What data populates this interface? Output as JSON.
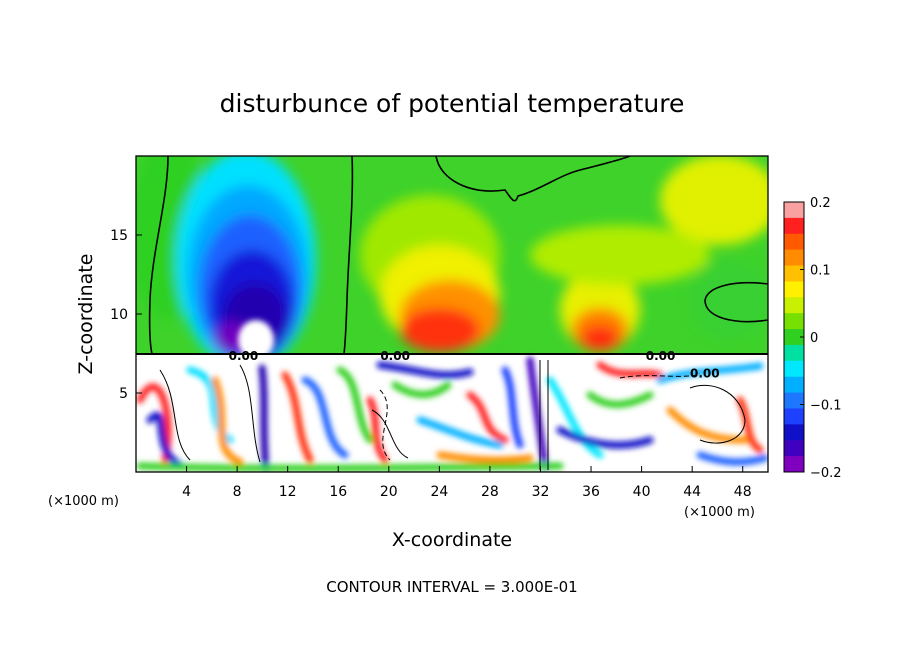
{
  "chart_data": {
    "type": "heatmap",
    "title": "disturbunce of potential temperature",
    "xlabel": "X-coordinate",
    "ylabel": "Z-coordinate",
    "x_unit": "(×1000 m)",
    "z_unit": "(×1000 m)",
    "xlim": [
      0,
      50
    ],
    "ylim": [
      0,
      20
    ],
    "x_ticks": [
      4,
      8,
      12,
      16,
      20,
      24,
      28,
      32,
      36,
      40,
      44,
      48
    ],
    "y_ticks": [
      5,
      10,
      15
    ],
    "colorbar": {
      "min": -0.2,
      "max": 0.2,
      "tick_values": [
        0.2,
        0.1,
        0,
        -0.1,
        -0.2
      ],
      "tick_labels": [
        "0.2",
        "0.1",
        "0",
        "−0.1",
        "−0.2"
      ],
      "colors": [
        "#f9a0a0",
        "#ff2020",
        "#ff5a00",
        "#ff8c00",
        "#ffc000",
        "#fff000",
        "#c8f000",
        "#78e000",
        "#30d020",
        "#00e0a0",
        "#00e8ff",
        "#00b0ff",
        "#1e78ff",
        "#1e40ff",
        "#1010c8",
        "#4000c0",
        "#8000c0"
      ]
    },
    "contour_labels": [
      {
        "text": "0.00",
        "x": 20.5,
        "z": 7.4
      },
      {
        "text": "0.00",
        "x": 41.5,
        "z": 7.4
      },
      {
        "text": "0.00",
        "x": 45.0,
        "z": 6.3
      },
      {
        "text": "0.00",
        "x": 8.5,
        "z": 7.4
      }
    ],
    "features": [
      {
        "kind": "cold_anomaly",
        "x_center": 9,
        "z_center": 11,
        "value": -0.2
      },
      {
        "kind": "warm_anomaly",
        "x_center": 23,
        "z_center": 9.5,
        "value": 0.15
      },
      {
        "kind": "warm_anomaly",
        "x_center": 37,
        "z_center": 8.8,
        "value": 0.15
      },
      {
        "kind": "warm_anomaly",
        "x_center": 45,
        "z_center": 17,
        "value": 0.07
      },
      {
        "kind": "boundary_layer",
        "z_top": 7.5,
        "description": "turbulent mixed layer"
      }
    ],
    "contour_interval_text": "CONTOUR INTERVAL = 3.000E-01"
  }
}
